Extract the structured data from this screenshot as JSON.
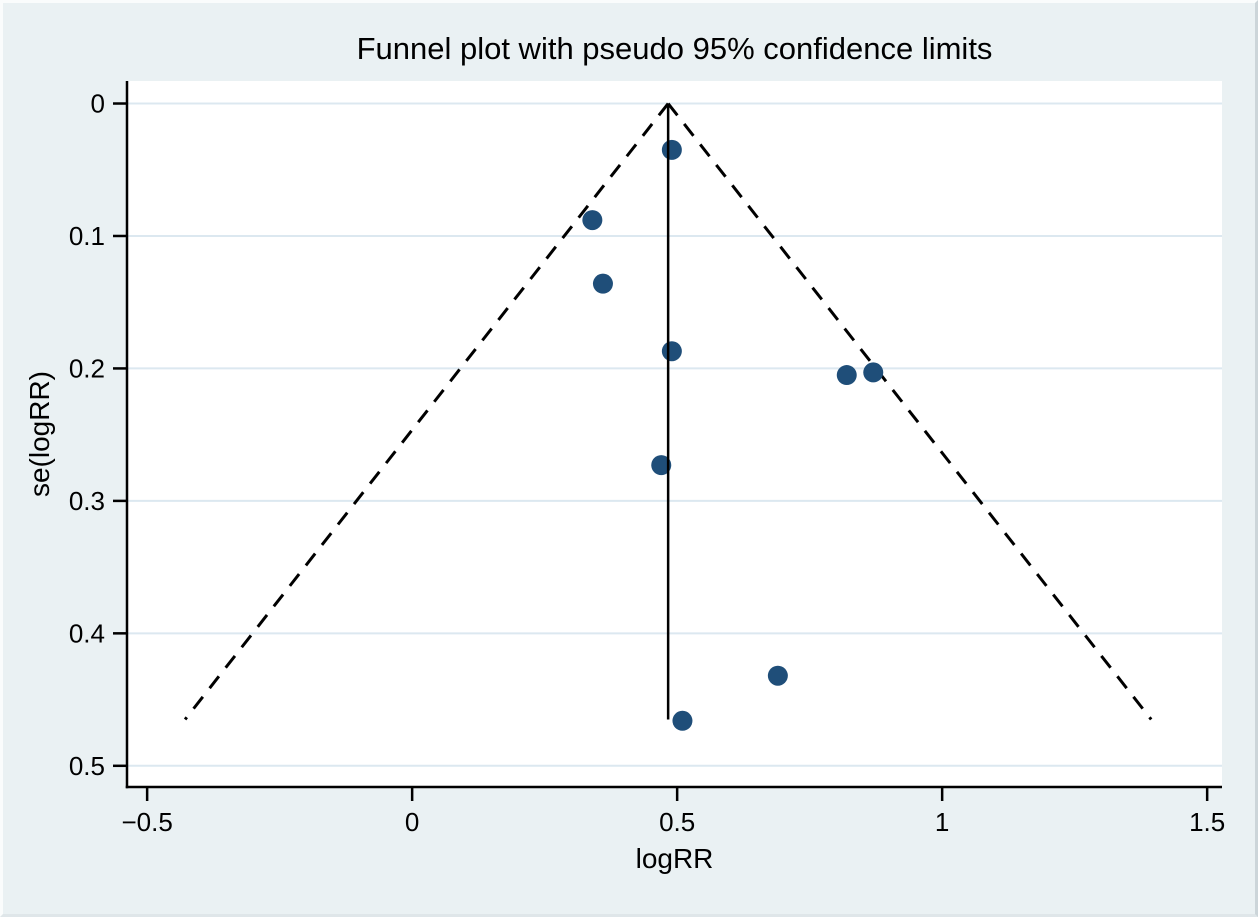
{
  "title": "Funnel plot with pseudo 95% confidence limits",
  "chart_data": {
    "type": "scatter",
    "title": "Funnel plot with pseudo 95% confidence limits",
    "xlabel": "logRR",
    "ylabel": "se(logRR)",
    "xlim": [
      -0.538,
      1.528
    ],
    "ylim": [
      -0.017,
      0.516
    ],
    "y_inverted": true,
    "grid": "horizontal",
    "x_ticks": [
      {
        "value": -0.5,
        "label": "−0.5"
      },
      {
        "value": 0,
        "label": "0"
      },
      {
        "value": 0.5,
        "label": "0.5"
      },
      {
        "value": 1,
        "label": "1"
      },
      {
        "value": 1.5,
        "label": "1.5"
      }
    ],
    "y_ticks": [
      {
        "value": 0,
        "label": "0"
      },
      {
        "value": 0.1,
        "label": "0.1"
      },
      {
        "value": 0.2,
        "label": "0.2"
      },
      {
        "value": 0.3,
        "label": "0.3"
      },
      {
        "value": 0.4,
        "label": "0.4"
      },
      {
        "value": 0.5,
        "label": "0.5"
      }
    ],
    "points": [
      {
        "logRR": 0.49,
        "se": 0.035
      },
      {
        "logRR": 0.34,
        "se": 0.088
      },
      {
        "logRR": 0.36,
        "se": 0.136
      },
      {
        "logRR": 0.49,
        "se": 0.187
      },
      {
        "logRR": 0.82,
        "se": 0.205
      },
      {
        "logRR": 0.87,
        "se": 0.203
      },
      {
        "logRR": 0.47,
        "se": 0.273
      },
      {
        "logRR": 0.69,
        "se": 0.432
      },
      {
        "logRR": 0.51,
        "se": 0.466
      }
    ],
    "funnel": {
      "center_logRR": 0.483,
      "z": 1.96,
      "se_max": 0.465,
      "line_style": "dashed"
    },
    "center_line": {
      "x": 0.483,
      "se_from": 0,
      "se_to": 0.465
    },
    "colors": {
      "marker": "#1f4e79",
      "background": "#eaf1f3",
      "plot_background": "#ffffff",
      "gridline": "#dce8f0",
      "axis": "#000000"
    }
  }
}
